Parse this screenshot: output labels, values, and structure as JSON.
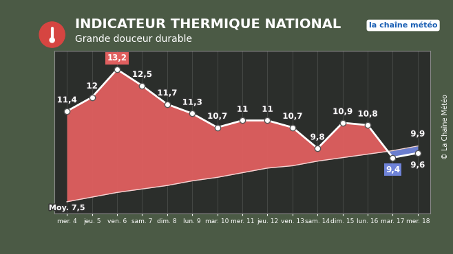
{
  "chart_data": {
    "type": "line",
    "title": "INDICATEUR THERMIQUE NATIONAL",
    "subtitle": "Grande douceur durable",
    "credit": "© La Chaîne Météo",
    "logo": "la chaîne météo",
    "categories": [
      "mer. 4",
      "jeu. 5",
      "ven. 6",
      "sam. 7",
      "dim. 8",
      "lun. 9",
      "mar. 10",
      "mer. 11",
      "jeu. 12",
      "ven. 13",
      "sam. 14",
      "dim. 15",
      "lun. 16",
      "mar. 17",
      "mer. 18"
    ],
    "series": [
      {
        "type": "area",
        "color": "#e05f5f",
        "marker": "o",
        "values": [
          11.4,
          12,
          13.2,
          12.5,
          11.7,
          11.3,
          10.7,
          11,
          11,
          10.7,
          9.8,
          10.9,
          10.8,
          9.4,
          9.6
        ],
        "value_labels": [
          "11,4",
          "12",
          "13,2",
          "12,5",
          "11,7",
          "11,3",
          "10,7",
          "11",
          "11",
          "10,7",
          "9,8",
          "10,9",
          "10,8",
          "9,4",
          "9,6"
        ]
      },
      {
        "type": "line",
        "color": "#6f83d8",
        "marker": "none",
        "values": [
          7.5,
          7.7,
          7.9,
          8.05,
          8.2,
          8.4,
          8.55,
          8.75,
          8.95,
          9.05,
          9.25,
          9.4,
          9.55,
          9.7,
          9.9
        ],
        "value_labels": [
          "Moy. 7,5",
          null,
          null,
          null,
          null,
          null,
          null,
          null,
          null,
          null,
          null,
          null,
          null,
          null,
          "9,9"
        ]
      }
    ],
    "ylim": [
      7,
      14
    ],
    "yticks": [],
    "grid": true,
    "data_labels": true,
    "tick_labels": "x"
  }
}
